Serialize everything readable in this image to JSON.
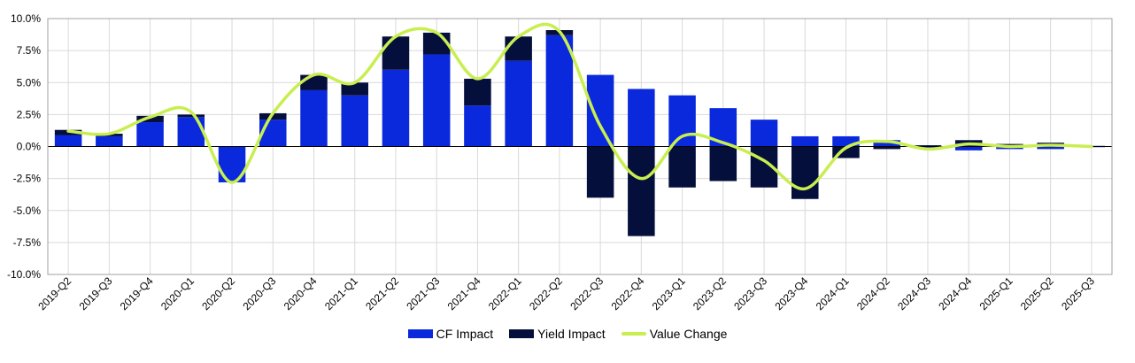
{
  "chart_data": {
    "type": "bar",
    "stacked": true,
    "title": "",
    "xlabel": "",
    "ylabel": "",
    "ylim": [
      -10.0,
      10.0
    ],
    "yticks": [
      10.0,
      7.5,
      5.0,
      2.5,
      0.0,
      -2.5,
      -5.0,
      -7.5,
      -10.0
    ],
    "ytick_labels": [
      "10.0%",
      "7.5%",
      "5.0%",
      "2.5%",
      "0.0%",
      "-2.5%",
      "-5.0%",
      "-7.5%",
      "-10.0%"
    ],
    "grid": true,
    "legend_position": "bottom-center",
    "categories": [
      "2019-Q2",
      "2019-Q3",
      "2019-Q4",
      "2020-Q1",
      "2020-Q2",
      "2020-Q3",
      "2020-Q4",
      "2021-Q1",
      "2021-Q2",
      "2021-Q3",
      "2021-Q4",
      "2022-Q1",
      "2022-Q2",
      "2022-Q3",
      "2022-Q4",
      "2023-Q1",
      "2023-Q2",
      "2023-Q3",
      "2023-Q4",
      "2024-Q1",
      "2024-Q2",
      "2024-Q3",
      "2024-Q4",
      "2025-Q1",
      "2025-Q2",
      "2025-Q3"
    ],
    "series": [
      {
        "name": "CF Impact",
        "kind": "bar",
        "color": "#0a28dc",
        "values": [
          0.9,
          0.8,
          1.9,
          2.3,
          -2.8,
          2.1,
          4.4,
          4.0,
          6.0,
          7.2,
          3.2,
          6.7,
          8.7,
          5.6,
          4.5,
          4.0,
          3.0,
          2.1,
          0.8,
          0.8,
          0.5,
          -0.1,
          -0.3,
          -0.2,
          -0.2,
          -0.05
        ]
      },
      {
        "name": "Yield Impact",
        "kind": "bar",
        "color": "#050f3c",
        "values": [
          0.4,
          0.2,
          0.5,
          0.2,
          0.0,
          0.5,
          1.2,
          1.0,
          2.6,
          1.7,
          2.1,
          1.9,
          0.4,
          -4.0,
          -7.0,
          -3.2,
          -2.7,
          -3.2,
          -4.1,
          -0.9,
          -0.2,
          0.1,
          0.5,
          0.2,
          0.3,
          0.05
        ]
      },
      {
        "name": "Value Change",
        "kind": "line",
        "color": "#c8ee50",
        "values": [
          1.2,
          1.0,
          2.3,
          2.7,
          -2.8,
          2.6,
          5.6,
          5.0,
          8.6,
          8.9,
          5.3,
          8.6,
          9.0,
          1.6,
          -2.5,
          0.8,
          0.3,
          -1.1,
          -3.3,
          -0.1,
          0.4,
          -0.2,
          0.2,
          0.0,
          0.1,
          0.0
        ]
      }
    ]
  }
}
